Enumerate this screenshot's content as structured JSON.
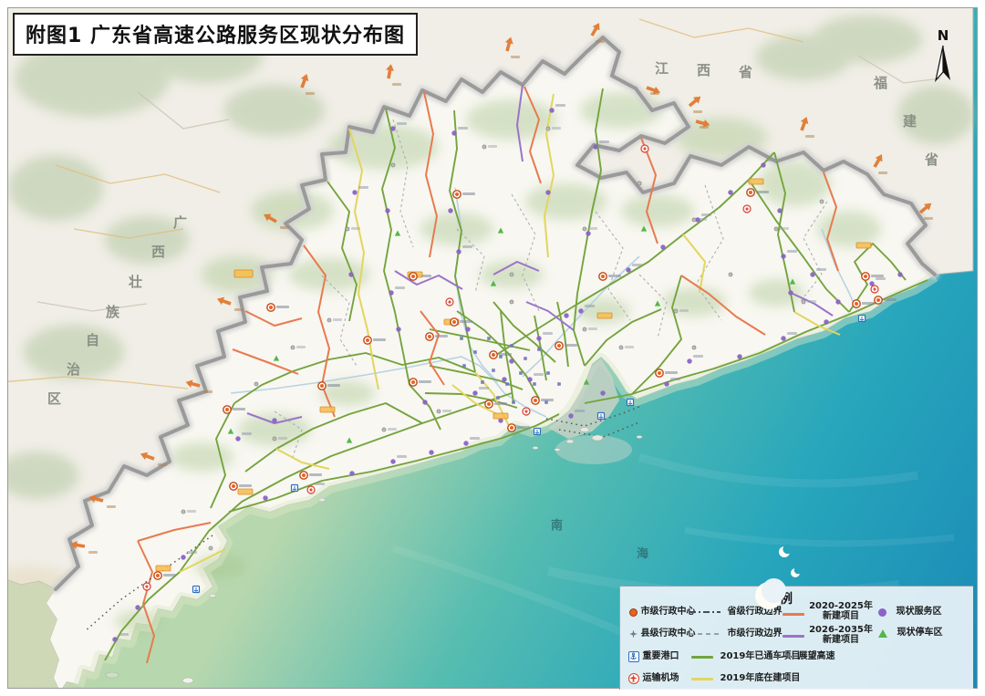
{
  "title": "附图1 广东省高速公路服务区现状分布图",
  "north_arrow": {
    "label": "N"
  },
  "map_labels": {
    "province_left": "广西壮族自治区",
    "province_top": "江西省",
    "province_right": "福建省",
    "sea": "南海"
  },
  "legend": {
    "title": "图例",
    "point_items": [
      {
        "id": "city-center",
        "label": "市级行政中心"
      },
      {
        "id": "county-center",
        "label": "县级行政中心"
      },
      {
        "id": "port",
        "label": "重要港口"
      },
      {
        "id": "airport",
        "label": "运输机场"
      }
    ],
    "line_items": [
      {
        "id": "prov-boundary",
        "label": "省级行政边界"
      },
      {
        "id": "city-boundary",
        "label": "市级行政边界"
      },
      {
        "id": "opened-2019",
        "label": "2019年已通车项目"
      },
      {
        "id": "under-constr-2019",
        "label": "2019年底在建项目"
      },
      {
        "id": "new-2020-2025",
        "label": "2020-2025年",
        "label2": "新建项目"
      },
      {
        "id": "new-2026-2035",
        "label": "2026-2035年",
        "label2": "新建项目"
      },
      {
        "id": "prospective",
        "label": "展望高速"
      }
    ],
    "status_items": [
      {
        "id": "service-area",
        "label": "现状服务区"
      },
      {
        "id": "parking-area",
        "label": "现状停车区"
      }
    ]
  },
  "colors": {
    "opened_2019": "#74a43e",
    "under_constr_2019": "#e3d55e",
    "new_2020_2025": "#e87a50",
    "new_2026_2035": "#9a74c8",
    "prospective": "#555555",
    "service_area": "#8b63c6",
    "parking_area": "#52b847",
    "city_center": "#e8641e",
    "port": "#2f6fc0",
    "airport": "#d84030",
    "sea_deep": "#1a88b5",
    "sea_shallow": "#b7d7ae",
    "province_boundary": "#9a9a9a"
  }
}
